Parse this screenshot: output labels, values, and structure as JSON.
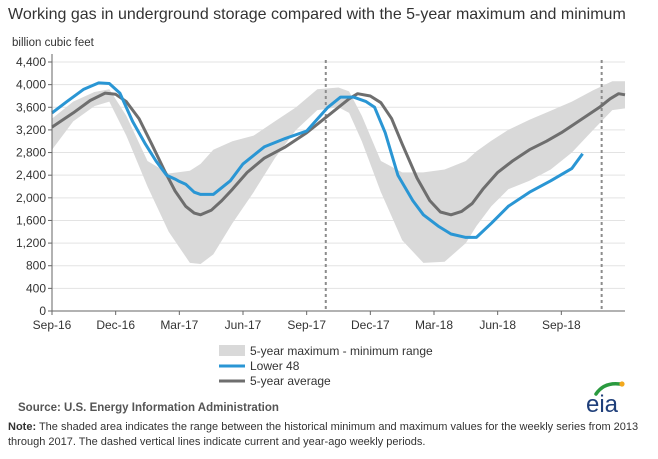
{
  "title": "Working gas in underground  storage compared with the 5-year maximum and minimum",
  "unit_label": "billion cubic feet",
  "source": "Source:  U.S. Energy Information Administration",
  "note_label": "Note:",
  "note_text": " The shaded area indicates the range between the historical minimum and maximum values for the weekly series from 2013 through 2017. The dashed vertical lines indicate current and year-ago weekly periods.",
  "logo_text": "eia",
  "colors": {
    "range": "#d9d9d9",
    "lower48": "#2a96d4",
    "average": "#6e6e6e",
    "axis": "#666666",
    "dashed": "#8c8c8c",
    "logo_arc": "#2a9a3f"
  },
  "chart_data": {
    "type": "line",
    "title": "Working gas in underground storage compared with the 5-year maximum and minimum",
    "ylabel": "billion cubic feet",
    "xlabel": "",
    "ylim": [
      0,
      4400
    ],
    "yticks": [
      0,
      400,
      800,
      1200,
      1600,
      2000,
      2400,
      2800,
      3200,
      3600,
      4000,
      4400
    ],
    "ytick_labels": [
      "0",
      "400",
      "800",
      "1,200",
      "1,600",
      "2,000",
      "2,400",
      "2,800",
      "3,200",
      "3,600",
      "4,000",
      "4,400"
    ],
    "xlim": [
      0,
      27
    ],
    "xticks": [
      0,
      3,
      6,
      9,
      12,
      15,
      18,
      21,
      24
    ],
    "xtick_labels": [
      "Sep-16",
      "Dec-16",
      "Mar-17",
      "Jun-17",
      "Sep-17",
      "Dec-17",
      "Mar-18",
      "Jun-18",
      "Sep-18"
    ],
    "x_unit": "months since Sep-16",
    "dashed_lines_x": [
      12.9,
      25.9
    ],
    "legend": [
      {
        "key": "range",
        "label": "5-year maximum - minimum range"
      },
      {
        "key": "lower48",
        "label": "Lower 48"
      },
      {
        "key": "average",
        "label": "5-year average"
      }
    ],
    "range_series": {
      "name": "5-year maximum - minimum range",
      "x": [
        0,
        1,
        2,
        2.7,
        3.5,
        4.5,
        5.5,
        6.5,
        7,
        7.6,
        8.5,
        9.5,
        10.5,
        11.5,
        12.5,
        13.5,
        14,
        14.6,
        15.5,
        16.5,
        17.5,
        18.5,
        19.5,
        20,
        20.7,
        21.5,
        22.5,
        23.5,
        24.5,
        25.5,
        26.4,
        27
      ],
      "max": [
        3400,
        3700,
        3870,
        3920,
        3450,
        2650,
        2430,
        2480,
        2600,
        2850,
        3000,
        3100,
        3350,
        3600,
        3920,
        3950,
        3880,
        3450,
        2650,
        2450,
        2450,
        2500,
        2650,
        2820,
        3010,
        3200,
        3380,
        3540,
        3700,
        3900,
        4060,
        4060
      ],
      "min": [
        2850,
        3350,
        3620,
        3700,
        3100,
        2200,
        1400,
        850,
        830,
        1000,
        1550,
        2100,
        2700,
        3200,
        3550,
        3600,
        3500,
        3000,
        2100,
        1250,
        850,
        870,
        1200,
        1500,
        1850,
        2150,
        2300,
        2500,
        2800,
        3200,
        3550,
        3580
      ]
    },
    "series": [
      {
        "name": "Lower 48",
        "x": [
          0,
          0.7,
          1.5,
          2.2,
          2.7,
          3.2,
          3.8,
          4.4,
          4.9,
          5.4,
          5.8,
          6.0,
          6.3,
          6.7,
          7.0,
          7.6,
          8.4,
          9.0,
          10,
          11,
          12,
          13,
          13.6,
          14.2,
          14.8,
          15.2,
          15.7,
          16.3,
          17,
          17.5,
          18.2,
          18.8,
          19.5,
          20,
          20.7,
          21.5,
          22.5,
          23.5,
          24.5,
          25
        ],
        "values": [
          3500,
          3700,
          3920,
          4030,
          4020,
          3850,
          3350,
          2950,
          2650,
          2400,
          2330,
          2290,
          2240,
          2100,
          2060,
          2060,
          2300,
          2600,
          2900,
          3050,
          3180,
          3600,
          3780,
          3780,
          3700,
          3600,
          3150,
          2400,
          1950,
          1700,
          1500,
          1360,
          1300,
          1300,
          1550,
          1850,
          2100,
          2300,
          2520,
          2780
        ]
      },
      {
        "name": "5-year average",
        "x": [
          0,
          1,
          1.8,
          2.5,
          3.0,
          3.5,
          4.1,
          4.7,
          5.3,
          5.8,
          6.3,
          6.7,
          7.0,
          7.5,
          8,
          8.5,
          9.2,
          10,
          11,
          12,
          13,
          14,
          14.4,
          15,
          15.5,
          16,
          16.5,
          17.2,
          17.8,
          18.3,
          18.8,
          19.3,
          19.8,
          20.3,
          21,
          21.7,
          22.5,
          23.3,
          24,
          24.6,
          25.2,
          25.8,
          26.3,
          26.7,
          27
        ],
        "values": [
          3250,
          3500,
          3720,
          3850,
          3830,
          3700,
          3400,
          2950,
          2480,
          2120,
          1850,
          1730,
          1700,
          1780,
          1950,
          2150,
          2450,
          2700,
          2900,
          3150,
          3450,
          3750,
          3840,
          3800,
          3680,
          3400,
          2950,
          2350,
          1950,
          1750,
          1700,
          1760,
          1900,
          2150,
          2450,
          2650,
          2850,
          3000,
          3150,
          3300,
          3450,
          3600,
          3750,
          3840,
          3820
        ]
      }
    ]
  }
}
